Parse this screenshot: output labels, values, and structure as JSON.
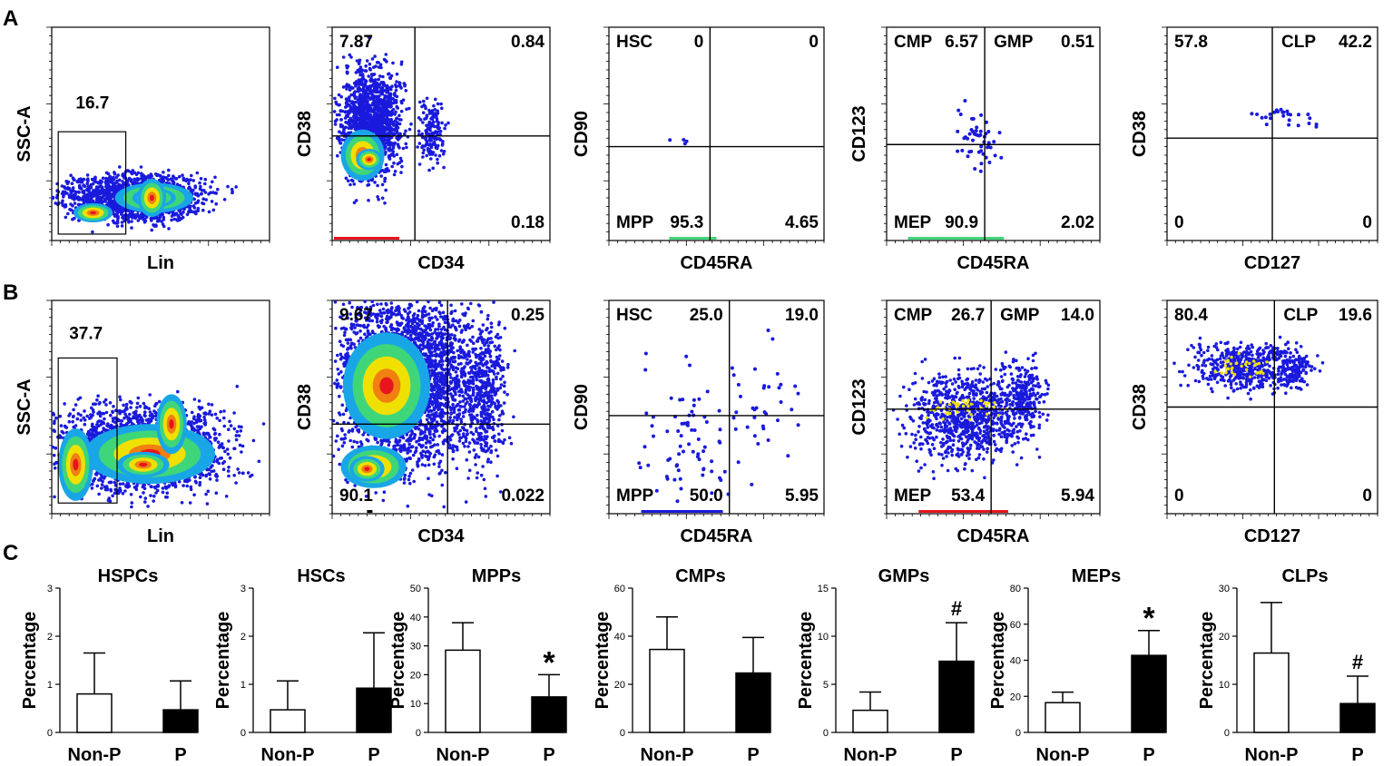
{
  "panel_labels": [
    "A",
    "B",
    "C"
  ],
  "colors": {
    "dot": "#1a1adc",
    "core_green": "#3fd67a",
    "core_yellow": "#f0e000",
    "core_red": "#e8141e",
    "bar_filled": "#000000",
    "bar_open": "#ffffff"
  },
  "flow": [
    {
      "row": "A",
      "plots": [
        {
          "type": "gate",
          "xlabel": "Lin",
          "ylabel": "SSC-A",
          "gate_value": "16.7"
        },
        {
          "type": "quad",
          "xlabel": "CD34",
          "ylabel": "CD38",
          "quadrants": {
            "ul": "7.87",
            "ur": "0.84",
            "ll": "",
            "lr": "0.18"
          }
        },
        {
          "type": "quad",
          "xlabel": "CD45RA",
          "ylabel": "CD90",
          "names": {
            "ul": "HSC",
            "ll": "MPP"
          },
          "quadrants": {
            "ul": "0",
            "ur": "0",
            "ll": "95.3",
            "lr": "4.65"
          }
        },
        {
          "type": "quad",
          "xlabel": "CD45RA",
          "ylabel": "CD123",
          "names": {
            "ul": "CMP",
            "ur": "GMP",
            "ll": "MEP"
          },
          "quadrants": {
            "ul": "6.57",
            "ur": "0.51",
            "ll": "90.9",
            "lr": "2.02"
          }
        },
        {
          "type": "quad",
          "xlabel": "CD127",
          "ylabel": "CD38",
          "names": {
            "ur": "CLP"
          },
          "quadrants": {
            "ul": "57.8",
            "ur": "42.2",
            "ll": "0",
            "lr": "0"
          }
        }
      ]
    },
    {
      "row": "B",
      "plots": [
        {
          "type": "gate",
          "xlabel": "Lin",
          "ylabel": "SSC-A",
          "gate_value": "37.7"
        },
        {
          "type": "quad",
          "xlabel": "CD34",
          "ylabel": "CD38",
          "quadrants": {
            "ul": "9.67",
            "ur": "0.25",
            "ll": "90.1",
            "lr": "0.022"
          }
        },
        {
          "type": "quad",
          "xlabel": "CD45RA",
          "ylabel": "CD90",
          "names": {
            "ul": "HSC",
            "ll": "MPP"
          },
          "quadrants": {
            "ul": "25.0",
            "ur": "19.0",
            "ll": "50.0",
            "lr": "5.95"
          }
        },
        {
          "type": "quad",
          "xlabel": "CD45RA",
          "ylabel": "CD123",
          "names": {
            "ul": "CMP",
            "ur": "GMP",
            "ll": "MEP"
          },
          "quadrants": {
            "ul": "26.7",
            "ur": "14.0",
            "ll": "53.4",
            "lr": "5.94"
          }
        },
        {
          "type": "quad",
          "xlabel": "CD127",
          "ylabel": "CD38",
          "names": {
            "ur": "CLP"
          },
          "quadrants": {
            "ul": "80.4",
            "ur": "19.6",
            "ll": "0",
            "lr": "0"
          }
        }
      ]
    }
  ],
  "chart_data": [
    {
      "type": "bar",
      "title": "HSPCs",
      "ylabel": "Percentage",
      "categories": [
        "Non-P",
        "P"
      ],
      "values": [
        0.8,
        0.47
      ],
      "error": [
        0.85,
        0.6
      ],
      "ylim": [
        0,
        3
      ],
      "yticks": [
        "0",
        "1",
        "2",
        "3"
      ],
      "annotation": ""
    },
    {
      "type": "bar",
      "title": "HSCs",
      "ylabel": "Percentage",
      "categories": [
        "Non-P",
        "P"
      ],
      "values": [
        0.47,
        0.92
      ],
      "error": [
        0.6,
        1.15
      ],
      "ylim": [
        0,
        3
      ],
      "yticks": [
        "0",
        "1",
        "2",
        "3"
      ],
      "annotation": ""
    },
    {
      "type": "bar",
      "title": "MPPs",
      "ylabel": "Percentage",
      "categories": [
        "Non-P",
        "P"
      ],
      "values": [
        28.5,
        12.3
      ],
      "error": [
        9.5,
        7.7
      ],
      "ylim": [
        0,
        50
      ],
      "yticks": [
        "0",
        "10",
        "20",
        "30",
        "40",
        "50"
      ],
      "annotation": "*"
    },
    {
      "type": "bar",
      "title": "CMPs",
      "ylabel": "Percentage",
      "categories": [
        "Non-P",
        "P"
      ],
      "values": [
        34.5,
        24.7
      ],
      "error": [
        13.5,
        14.8
      ],
      "ylim": [
        0,
        60
      ],
      "yticks": [
        "0",
        "20",
        "40",
        "60"
      ],
      "annotation": ""
    },
    {
      "type": "bar",
      "title": "GMPs",
      "ylabel": "Percentage",
      "categories": [
        "Non-P",
        "P"
      ],
      "values": [
        2.3,
        7.4
      ],
      "error": [
        1.9,
        4.0
      ],
      "ylim": [
        0,
        15
      ],
      "yticks": [
        "0",
        "5",
        "10",
        "15"
      ],
      "annotation": "#"
    },
    {
      "type": "bar",
      "title": "MEPs",
      "ylabel": "Percentage",
      "categories": [
        "Non-P",
        "P"
      ],
      "values": [
        16.5,
        42.7
      ],
      "error": [
        5.8,
        13.8
      ],
      "ylim": [
        0,
        80
      ],
      "yticks": [
        "0",
        "20",
        "40",
        "60",
        "80"
      ],
      "annotation": "*"
    },
    {
      "type": "bar",
      "title": "CLPs",
      "ylabel": "Percentage",
      "categories": [
        "Non-P",
        "P"
      ],
      "values": [
        16.5,
        6.0
      ],
      "error": [
        10.5,
        5.7
      ],
      "ylim": [
        0,
        30
      ],
      "yticks": [
        "0",
        "10",
        "20",
        "30"
      ],
      "annotation": "#"
    }
  ]
}
